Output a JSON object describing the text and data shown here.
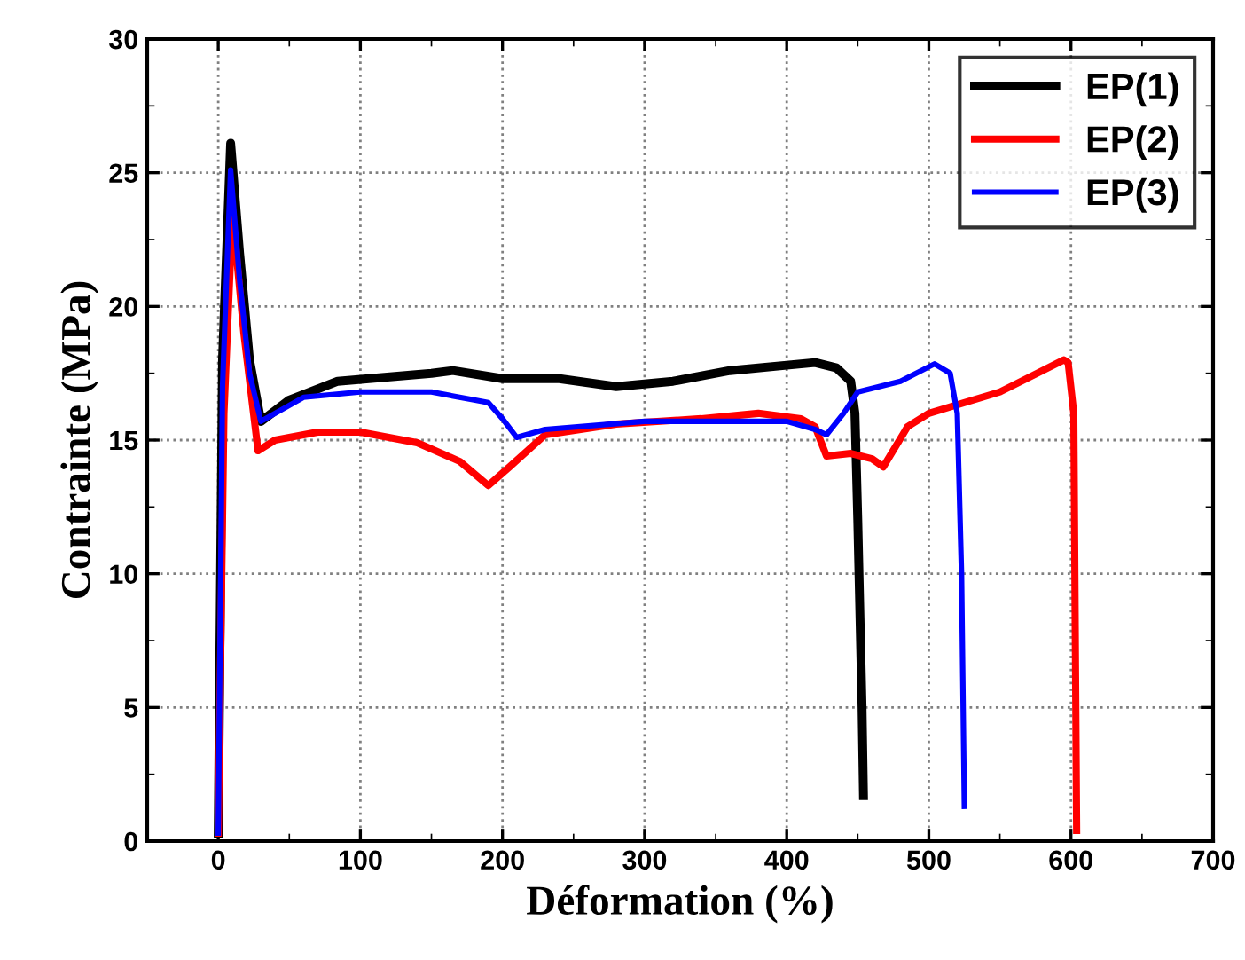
{
  "chart_data": {
    "type": "line",
    "xlabel": "Déformation (%)",
    "ylabel": "Contrainte (MPa)",
    "xlim": [
      -50,
      700
    ],
    "xticks": [
      0,
      100,
      200,
      300,
      400,
      500,
      600,
      700
    ],
    "ylim": [
      0,
      30
    ],
    "yticks": [
      0,
      5,
      10,
      15,
      20,
      25,
      30
    ],
    "grid": true,
    "legend": "top right",
    "line_style": "solid",
    "marker": "none",
    "series": [
      {
        "name": "EP(1)",
        "color": "#000000",
        "x": [
          0,
          3,
          8.7,
          15,
          22,
          30,
          50,
          84,
          150,
          165,
          200,
          240,
          280,
          320,
          360,
          400,
          420,
          435,
          445,
          448,
          450,
          453,
          454
        ],
        "values": [
          0.3,
          18,
          26.1,
          22,
          18,
          15.7,
          16.5,
          17.2,
          17.5,
          17.6,
          17.3,
          17.3,
          17.0,
          17.2,
          17.6,
          17.8,
          17.9,
          17.7,
          17.2,
          16.0,
          12,
          5,
          1.7
        ]
      },
      {
        "name": "EP(2)",
        "color": "#ff0000",
        "x": [
          0,
          4,
          10,
          18,
          28,
          40,
          70,
          100,
          140,
          170,
          190,
          205,
          230,
          280,
          340,
          380,
          410,
          420,
          428,
          445,
          460,
          468,
          485,
          500,
          550,
          595,
          598,
          602,
          603,
          604
        ],
        "values": [
          0.3,
          16,
          23.5,
          19,
          14.6,
          15.0,
          15.3,
          15.3,
          14.9,
          14.2,
          13.3,
          14.0,
          15.2,
          15.6,
          15.8,
          16.0,
          15.8,
          15.5,
          14.4,
          14.5,
          14.3,
          14.0,
          15.5,
          16.0,
          16.8,
          18.0,
          17.9,
          16,
          8,
          0.4
        ]
      },
      {
        "name": "EP(3)",
        "color": "#0000ff",
        "x": [
          0,
          3,
          8.7,
          15,
          22,
          30,
          60,
          100,
          150,
          180,
          190,
          200,
          210,
          230,
          300,
          400,
          420,
          428,
          440,
          450,
          480,
          504,
          515,
          520,
          523,
          525
        ],
        "values": [
          0.3,
          17,
          25.1,
          21,
          17.5,
          15.7,
          16.6,
          16.8,
          16.8,
          16.5,
          16.4,
          15.8,
          15.1,
          15.4,
          15.7,
          15.7,
          15.4,
          15.2,
          16.0,
          16.8,
          17.2,
          17.85,
          17.5,
          16,
          10,
          1.3
        ]
      }
    ]
  }
}
